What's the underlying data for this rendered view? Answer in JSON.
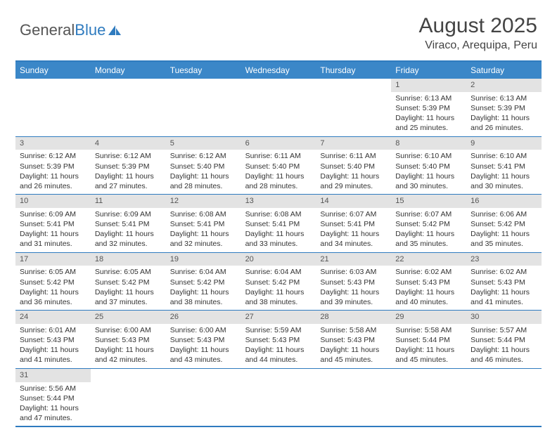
{
  "logo": {
    "text_gray": "General",
    "text_blue": "Blue"
  },
  "title": "August 2025",
  "location": "Viraco, Arequipa, Peru",
  "weekdays": [
    "Sunday",
    "Monday",
    "Tuesday",
    "Wednesday",
    "Thursday",
    "Friday",
    "Saturday"
  ],
  "colors": {
    "header_bar": "#3b87c8",
    "border": "#2f7bbf",
    "daynum_bg": "#e3e3e3"
  },
  "weeks": [
    [
      null,
      null,
      null,
      null,
      null,
      {
        "n": "1",
        "sr": "6:13 AM",
        "ss": "5:39 PM",
        "dl": "11 hours and 25 minutes."
      },
      {
        "n": "2",
        "sr": "6:13 AM",
        "ss": "5:39 PM",
        "dl": "11 hours and 26 minutes."
      }
    ],
    [
      {
        "n": "3",
        "sr": "6:12 AM",
        "ss": "5:39 PM",
        "dl": "11 hours and 26 minutes."
      },
      {
        "n": "4",
        "sr": "6:12 AM",
        "ss": "5:39 PM",
        "dl": "11 hours and 27 minutes."
      },
      {
        "n": "5",
        "sr": "6:12 AM",
        "ss": "5:40 PM",
        "dl": "11 hours and 28 minutes."
      },
      {
        "n": "6",
        "sr": "6:11 AM",
        "ss": "5:40 PM",
        "dl": "11 hours and 28 minutes."
      },
      {
        "n": "7",
        "sr": "6:11 AM",
        "ss": "5:40 PM",
        "dl": "11 hours and 29 minutes."
      },
      {
        "n": "8",
        "sr": "6:10 AM",
        "ss": "5:40 PM",
        "dl": "11 hours and 30 minutes."
      },
      {
        "n": "9",
        "sr": "6:10 AM",
        "ss": "5:41 PM",
        "dl": "11 hours and 30 minutes."
      }
    ],
    [
      {
        "n": "10",
        "sr": "6:09 AM",
        "ss": "5:41 PM",
        "dl": "11 hours and 31 minutes."
      },
      {
        "n": "11",
        "sr": "6:09 AM",
        "ss": "5:41 PM",
        "dl": "11 hours and 32 minutes."
      },
      {
        "n": "12",
        "sr": "6:08 AM",
        "ss": "5:41 PM",
        "dl": "11 hours and 32 minutes."
      },
      {
        "n": "13",
        "sr": "6:08 AM",
        "ss": "5:41 PM",
        "dl": "11 hours and 33 minutes."
      },
      {
        "n": "14",
        "sr": "6:07 AM",
        "ss": "5:41 PM",
        "dl": "11 hours and 34 minutes."
      },
      {
        "n": "15",
        "sr": "6:07 AM",
        "ss": "5:42 PM",
        "dl": "11 hours and 35 minutes."
      },
      {
        "n": "16",
        "sr": "6:06 AM",
        "ss": "5:42 PM",
        "dl": "11 hours and 35 minutes."
      }
    ],
    [
      {
        "n": "17",
        "sr": "6:05 AM",
        "ss": "5:42 PM",
        "dl": "11 hours and 36 minutes."
      },
      {
        "n": "18",
        "sr": "6:05 AM",
        "ss": "5:42 PM",
        "dl": "11 hours and 37 minutes."
      },
      {
        "n": "19",
        "sr": "6:04 AM",
        "ss": "5:42 PM",
        "dl": "11 hours and 38 minutes."
      },
      {
        "n": "20",
        "sr": "6:04 AM",
        "ss": "5:42 PM",
        "dl": "11 hours and 38 minutes."
      },
      {
        "n": "21",
        "sr": "6:03 AM",
        "ss": "5:43 PM",
        "dl": "11 hours and 39 minutes."
      },
      {
        "n": "22",
        "sr": "6:02 AM",
        "ss": "5:43 PM",
        "dl": "11 hours and 40 minutes."
      },
      {
        "n": "23",
        "sr": "6:02 AM",
        "ss": "5:43 PM",
        "dl": "11 hours and 41 minutes."
      }
    ],
    [
      {
        "n": "24",
        "sr": "6:01 AM",
        "ss": "5:43 PM",
        "dl": "11 hours and 41 minutes."
      },
      {
        "n": "25",
        "sr": "6:00 AM",
        "ss": "5:43 PM",
        "dl": "11 hours and 42 minutes."
      },
      {
        "n": "26",
        "sr": "6:00 AM",
        "ss": "5:43 PM",
        "dl": "11 hours and 43 minutes."
      },
      {
        "n": "27",
        "sr": "5:59 AM",
        "ss": "5:43 PM",
        "dl": "11 hours and 44 minutes."
      },
      {
        "n": "28",
        "sr": "5:58 AM",
        "ss": "5:43 PM",
        "dl": "11 hours and 45 minutes."
      },
      {
        "n": "29",
        "sr": "5:58 AM",
        "ss": "5:44 PM",
        "dl": "11 hours and 45 minutes."
      },
      {
        "n": "30",
        "sr": "5:57 AM",
        "ss": "5:44 PM",
        "dl": "11 hours and 46 minutes."
      }
    ],
    [
      {
        "n": "31",
        "sr": "5:56 AM",
        "ss": "5:44 PM",
        "dl": "11 hours and 47 minutes."
      },
      null,
      null,
      null,
      null,
      null,
      null
    ]
  ],
  "labels": {
    "sunrise": "Sunrise: ",
    "sunset": "Sunset: ",
    "daylight": "Daylight: "
  }
}
